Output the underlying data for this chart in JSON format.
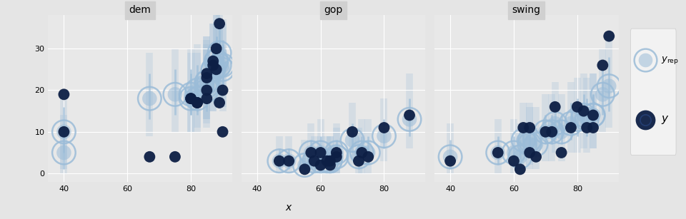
{
  "panels": [
    "dem",
    "gop",
    "swing"
  ],
  "background_color": "#e5e5e5",
  "plot_bg_color": "#e8e8e8",
  "grid_color": "white",
  "title_bar_color": "#d0d0d0",
  "light_blue": "#9bbcd8",
  "dark_navy": "#0d1f45",
  "xlabel": "x",
  "ylim": [
    -2,
    38
  ],
  "yticks": [
    0,
    10,
    20,
    30
  ],
  "xlim_all": [
    35,
    93
  ],
  "dem": {
    "x": [
      40,
      40,
      67,
      75,
      80,
      80,
      82,
      82,
      85,
      85,
      85,
      85,
      87,
      87,
      88,
      88,
      89,
      89,
      90,
      90
    ],
    "y": [
      19,
      10,
      4,
      4,
      18,
      18,
      17,
      17,
      24,
      23,
      20,
      18,
      27,
      26,
      30,
      25,
      36,
      17,
      20,
      10
    ],
    "yrep": [
      10,
      5,
      18,
      19,
      19,
      18,
      20,
      18,
      22,
      21,
      22,
      20,
      25,
      25,
      27,
      27,
      29,
      26,
      26,
      25
    ],
    "y_lo": [
      5,
      1,
      13,
      14,
      14,
      14,
      15,
      14,
      17,
      16,
      17,
      15,
      20,
      20,
      22,
      22,
      24,
      21,
      21,
      20
    ],
    "y_hi": [
      16,
      10,
      24,
      25,
      25,
      24,
      26,
      24,
      28,
      27,
      28,
      26,
      31,
      31,
      33,
      33,
      35,
      32,
      32,
      31
    ],
    "y_lo2": [
      1,
      0,
      9,
      10,
      10,
      10,
      11,
      10,
      13,
      12,
      13,
      11,
      15,
      15,
      17,
      17,
      19,
      16,
      16,
      15
    ],
    "y_hi2": [
      20,
      14,
      29,
      30,
      30,
      29,
      31,
      29,
      33,
      32,
      33,
      31,
      36,
      36,
      38,
      38,
      40,
      37,
      37,
      36
    ]
  },
  "gop": {
    "x": [
      47,
      50,
      55,
      57,
      58,
      60,
      60,
      62,
      63,
      63,
      65,
      65,
      70,
      72,
      73,
      75,
      80,
      88
    ],
    "y": [
      3,
      3,
      1,
      5,
      3,
      2,
      5,
      3,
      2,
      3,
      4,
      5,
      10,
      3,
      5,
      4,
      11,
      14
    ],
    "yrep": [
      3,
      3,
      2,
      5,
      3,
      3,
      5,
      3,
      3,
      3,
      4,
      5,
      8,
      4,
      5,
      5,
      9,
      13
    ],
    "y_lo": [
      1,
      1,
      0,
      2,
      1,
      1,
      2,
      1,
      1,
      1,
      2,
      2,
      5,
      1,
      2,
      2,
      6,
      9
    ],
    "y_hi": [
      6,
      6,
      5,
      8,
      6,
      6,
      9,
      6,
      6,
      6,
      7,
      8,
      12,
      7,
      9,
      9,
      13,
      18
    ],
    "y_lo2": [
      0,
      0,
      0,
      0,
      0,
      0,
      0,
      0,
      0,
      0,
      0,
      0,
      2,
      0,
      0,
      0,
      3,
      6
    ],
    "y_hi2": [
      9,
      9,
      8,
      12,
      9,
      9,
      13,
      9,
      9,
      9,
      11,
      12,
      17,
      11,
      13,
      13,
      18,
      24
    ]
  },
  "swing": {
    "x": [
      40,
      55,
      60,
      62,
      63,
      65,
      65,
      67,
      70,
      72,
      73,
      75,
      78,
      80,
      82,
      83,
      85,
      85,
      88,
      90
    ],
    "y": [
      3,
      5,
      3,
      1,
      11,
      11,
      5,
      4,
      10,
      10,
      16,
      5,
      11,
      16,
      15,
      11,
      14,
      11,
      26,
      33
    ],
    "yrep": [
      4,
      5,
      5,
      4,
      8,
      8,
      7,
      7,
      10,
      10,
      12,
      10,
      12,
      13,
      14,
      13,
      14,
      14,
      19,
      21
    ],
    "y_lo": [
      1,
      2,
      2,
      1,
      5,
      5,
      4,
      4,
      7,
      7,
      8,
      7,
      8,
      9,
      10,
      9,
      10,
      10,
      14,
      15
    ],
    "y_hi": [
      8,
      9,
      9,
      8,
      12,
      12,
      11,
      11,
      14,
      14,
      17,
      14,
      17,
      18,
      19,
      18,
      19,
      19,
      25,
      28
    ],
    "y_lo2": [
      0,
      0,
      0,
      0,
      2,
      2,
      1,
      1,
      3,
      3,
      5,
      3,
      5,
      5,
      6,
      5,
      6,
      6,
      10,
      11
    ],
    "y_hi2": [
      12,
      13,
      13,
      12,
      17,
      17,
      16,
      16,
      19,
      19,
      22,
      19,
      22,
      23,
      24,
      23,
      24,
      24,
      30,
      33
    ]
  }
}
